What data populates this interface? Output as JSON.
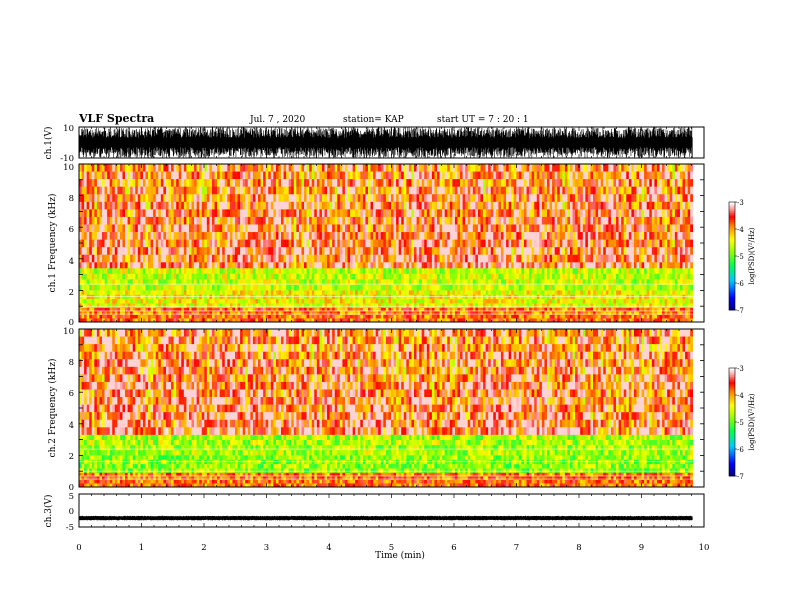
{
  "header": {
    "title": "VLF Spectra",
    "date": "Jul. 7 , 2020",
    "station": "station= KAP",
    "start": "start UT = 7 : 20 : 1"
  },
  "chart_data": [
    {
      "type": "line",
      "panel": "ch1-waveform",
      "ylabel": "ch.1(V)",
      "ylim": [
        -10,
        10
      ],
      "yticks": [
        "10",
        "-10"
      ],
      "xlim": [
        0,
        10
      ],
      "amplitude_range": [
        -10,
        10
      ],
      "end_time_min": 9.82
    },
    {
      "type": "heatmap",
      "panel": "ch1-spectrogram",
      "ylabel": "ch.1 Frequency (kHz)",
      "ylim": [
        0,
        10
      ],
      "yticks": [
        "0",
        "2",
        "4",
        "6",
        "8",
        "10"
      ],
      "xlim": [
        0,
        10
      ],
      "end_time_min": 9.82,
      "colorbar": {
        "label": "log(PSD)(V²/Hz)",
        "range": [
          -7,
          -3
        ],
        "ticks": [
          "-3",
          "-4",
          "-5",
          "-6",
          "-7"
        ]
      },
      "bands": [
        {
          "f_khz": [
            3.3,
            10
          ],
          "log_psd": -4.0
        },
        {
          "f_khz": [
            2.0,
            3.4
          ],
          "log_psd": -4.6
        },
        {
          "f_khz": [
            0.9,
            2.0
          ],
          "log_psd": -4.4
        },
        {
          "f_khz": [
            0,
            0.9
          ],
          "log_psd": -3.8
        }
      ]
    },
    {
      "type": "heatmap",
      "panel": "ch2-spectrogram",
      "ylabel": "ch.2 Frequency (kHz)",
      "ylim": [
        0,
        10
      ],
      "yticks": [
        "0",
        "2",
        "4",
        "6",
        "8",
        "10"
      ],
      "xlim": [
        0,
        10
      ],
      "end_time_min": 9.82,
      "colorbar": {
        "label": "log(PSD)(V²/Hz)",
        "range": [
          -7,
          -3
        ],
        "ticks": [
          "-3",
          "-4",
          "-5",
          "-6",
          "-7"
        ]
      },
      "bands": [
        {
          "f_khz": [
            3.3,
            10
          ],
          "log_psd": -4.0
        },
        {
          "f_khz": [
            2.0,
            3.3
          ],
          "log_psd": -4.7
        },
        {
          "f_khz": [
            0.9,
            2.0
          ],
          "log_psd": -4.8
        },
        {
          "f_khz": [
            0,
            0.9
          ],
          "log_psd": -3.8
        }
      ]
    },
    {
      "type": "line",
      "panel": "ch3-waveform",
      "ylabel": "ch.3(V)",
      "ylim": [
        -5,
        5
      ],
      "yticks": [
        "5",
        "0",
        "-5"
      ],
      "xlim": [
        0,
        10
      ],
      "amplitude_range": [
        -3.0,
        -1.6
      ],
      "end_time_min": 9.82,
      "xlabel": "Time (min)",
      "xticks": [
        "0",
        "1",
        "2",
        "3",
        "4",
        "5",
        "6",
        "7",
        "8",
        "9",
        "10"
      ]
    }
  ]
}
